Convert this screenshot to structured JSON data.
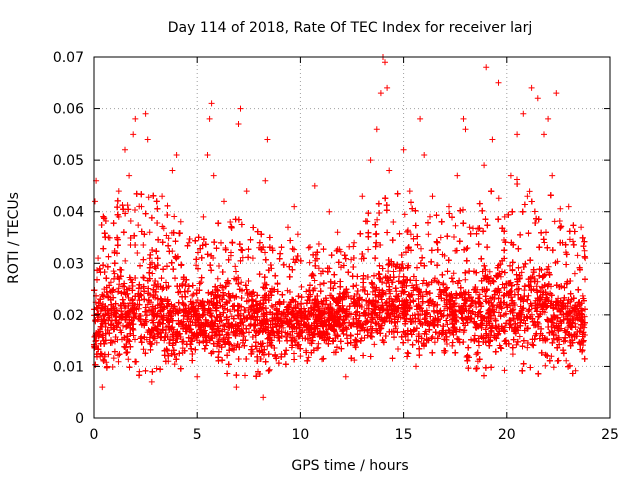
{
  "chart_data": {
    "type": "scatter",
    "title": "Day 114 of 2018, Rate Of TEC Index for receiver larj",
    "xlabel": "GPS time / hours",
    "ylabel": "ROTI / TECUs",
    "xlim": [
      0,
      25
    ],
    "ylim": [
      0,
      0.07
    ],
    "xticks": [
      0,
      5,
      10,
      15,
      20,
      25
    ],
    "xtick_labels": [
      "0",
      "5",
      "10",
      "15",
      "20",
      "25"
    ],
    "yticks": [
      0,
      0.01,
      0.02,
      0.03,
      0.04,
      0.05,
      0.06,
      0.07
    ],
    "ytick_labels": [
      "0",
      "0.01",
      "0.02",
      "0.03",
      "0.04",
      "0.05",
      "0.06",
      "0.07"
    ],
    "grid": true,
    "marker": "+",
    "color": "#ff0000",
    "x_data_range": [
      0,
      23.8
    ],
    "series": [
      {
        "name": "ROTI",
        "x": [
          0.05,
          0.1,
          0.2,
          0.3,
          0.4,
          0.5,
          0.7,
          1.0,
          1.2,
          1.5,
          1.7,
          1.9,
          2.0,
          2.1,
          2.2,
          2.3,
          2.5,
          2.6,
          2.7,
          2.8,
          3.0,
          3.3,
          3.6,
          3.8,
          4.0,
          4.3,
          4.6,
          5.0,
          5.3,
          5.5,
          5.6,
          5.7,
          5.8,
          6.0,
          6.3,
          6.6,
          6.9,
          7.0,
          7.1,
          7.4,
          7.7,
          8.0,
          8.2,
          8.3,
          8.4,
          8.6,
          9.0,
          9.4,
          9.7,
          10.0,
          10.4,
          10.7,
          11.0,
          11.4,
          11.8,
          12.2,
          12.6,
          13.0,
          13.4,
          13.7,
          13.9,
          14.0,
          14.1,
          14.2,
          14.3,
          14.5,
          14.8,
          15.0,
          15.3,
          15.6,
          15.8,
          16.0,
          16.4,
          16.8,
          17.2,
          17.6,
          17.9,
          18.0,
          18.2,
          18.6,
          18.9,
          19.0,
          19.3,
          19.6,
          19.9,
          20.2,
          20.5,
          20.8,
          21.0,
          21.2,
          21.5,
          21.8,
          22.0,
          22.2,
          22.4,
          22.7,
          23.0,
          23.3,
          23.6,
          23.8
        ],
        "y": [
          0.042,
          0.046,
          0.031,
          0.012,
          0.006,
          0.025,
          0.035,
          0.028,
          0.044,
          0.052,
          0.047,
          0.055,
          0.058,
          0.032,
          0.009,
          0.041,
          0.059,
          0.054,
          0.036,
          0.007,
          0.029,
          0.043,
          0.011,
          0.048,
          0.051,
          0.026,
          0.034,
          0.008,
          0.039,
          0.051,
          0.058,
          0.061,
          0.047,
          0.027,
          0.042,
          0.038,
          0.006,
          0.057,
          0.06,
          0.044,
          0.031,
          0.033,
          0.004,
          0.046,
          0.054,
          0.029,
          0.022,
          0.037,
          0.041,
          0.012,
          0.033,
          0.045,
          0.028,
          0.04,
          0.036,
          0.008,
          0.034,
          0.043,
          0.05,
          0.056,
          0.063,
          0.07,
          0.069,
          0.064,
          0.048,
          0.038,
          0.029,
          0.052,
          0.044,
          0.01,
          0.058,
          0.051,
          0.043,
          0.035,
          0.041,
          0.047,
          0.058,
          0.056,
          0.037,
          0.011,
          0.049,
          0.068,
          0.054,
          0.065,
          0.039,
          0.047,
          0.055,
          0.059,
          0.043,
          0.064,
          0.062,
          0.055,
          0.058,
          0.047,
          0.063,
          0.034,
          0.041,
          0.028,
          0.037,
          0.031
        ]
      }
    ],
    "band": {
      "description": "dense cloud of points",
      "x": [
        0.0,
        1.0,
        2.0,
        3.0,
        4.0,
        5.0,
        6.0,
        7.0,
        8.0,
        9.0,
        10.0,
        11.0,
        12.0,
        13.0,
        14.0,
        15.0,
        16.0,
        17.0,
        18.0,
        19.0,
        20.0,
        21.0,
        22.0,
        23.0,
        23.8
      ],
      "y_low": [
        0.007,
        0.009,
        0.008,
        0.009,
        0.009,
        0.01,
        0.009,
        0.008,
        0.008,
        0.01,
        0.01,
        0.011,
        0.011,
        0.011,
        0.011,
        0.011,
        0.011,
        0.011,
        0.009,
        0.008,
        0.009,
        0.009,
        0.008,
        0.008,
        0.008
      ],
      "y_high": [
        0.037,
        0.042,
        0.044,
        0.043,
        0.04,
        0.036,
        0.038,
        0.039,
        0.037,
        0.034,
        0.036,
        0.034,
        0.034,
        0.038,
        0.045,
        0.044,
        0.039,
        0.04,
        0.041,
        0.044,
        0.046,
        0.047,
        0.045,
        0.038,
        0.036
      ],
      "y_center": [
        0.018,
        0.02,
        0.02,
        0.02,
        0.019,
        0.019,
        0.019,
        0.019,
        0.018,
        0.019,
        0.019,
        0.019,
        0.019,
        0.02,
        0.022,
        0.022,
        0.02,
        0.02,
        0.02,
        0.021,
        0.022,
        0.022,
        0.021,
        0.019,
        0.018
      ],
      "density_per_hour": 420
    }
  }
}
